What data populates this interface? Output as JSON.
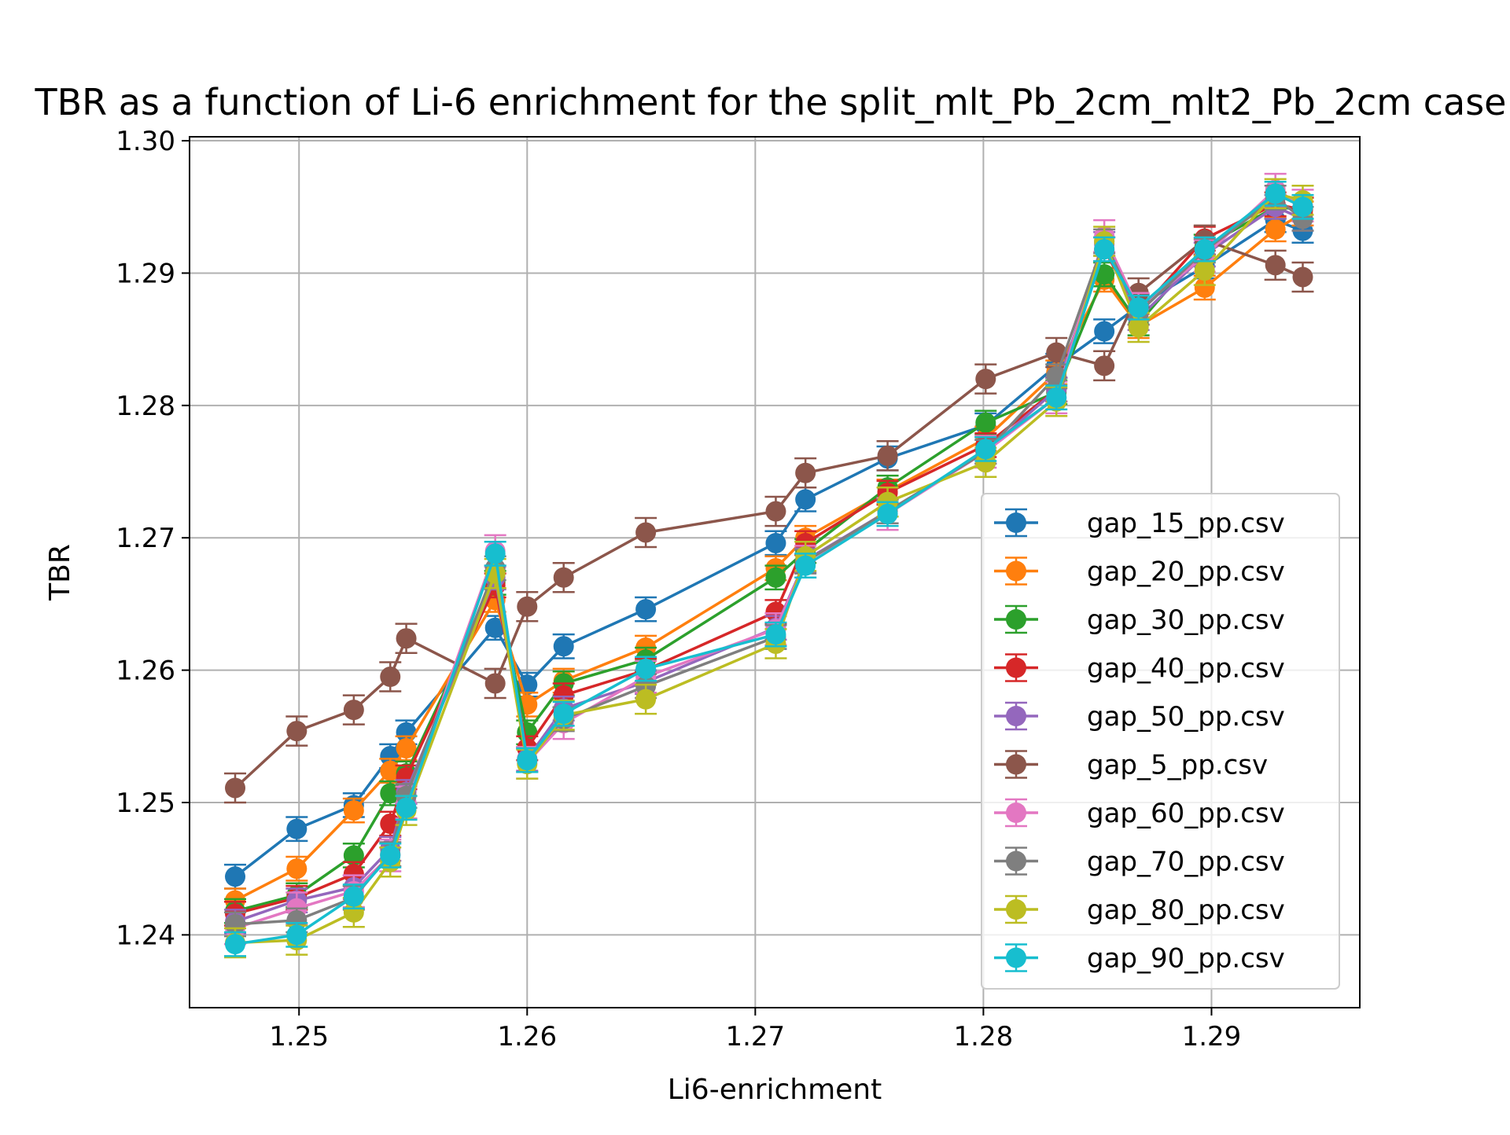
{
  "chart_data": {
    "type": "line",
    "title": "TBR as a function of Li-6 enrichment for the split_mlt_Pb_2cm_mlt2_Pb_2cm case",
    "xlabel": "Li6-enrichment",
    "ylabel": "TBR",
    "xlim": [
      1.2452,
      1.2965
    ],
    "ylim": [
      1.2345,
      1.3003
    ],
    "xticks": [
      "1.25",
      "1.26",
      "1.27",
      "1.28",
      "1.29"
    ],
    "xtick_values": [
      1.25,
      1.26,
      1.27,
      1.28,
      1.29
    ],
    "yticks": [
      "1.24",
      "1.25",
      "1.26",
      "1.27",
      "1.28",
      "1.29",
      "1.30"
    ],
    "ytick_values": [
      1.24,
      1.25,
      1.26,
      1.27,
      1.28,
      1.29,
      1.3
    ],
    "grid": true,
    "legend_position": "lower-right",
    "x": [
      1.2472,
      1.2499,
      1.2524,
      1.254,
      1.2547,
      1.2586,
      1.26,
      1.2616,
      1.2652,
      1.2709,
      1.2722,
      1.2758,
      1.2801,
      1.2832,
      1.2853,
      1.2868,
      1.2897,
      1.2928,
      1.294
    ],
    "series": [
      {
        "name": "gap_15_pp.csv",
        "color": "#1f77b4",
        "error": 0.0009,
        "values": [
          1.2444,
          1.248,
          1.2498,
          1.2535,
          1.2553,
          1.2632,
          1.2589,
          1.2618,
          1.2646,
          1.2696,
          1.2729,
          1.276,
          1.2785,
          1.283,
          1.2856,
          1.2875,
          1.2905,
          1.294,
          1.2932
        ]
      },
      {
        "name": "gap_20_pp.csv",
        "color": "#ff7f0e",
        "error": 0.0009,
        "values": [
          1.2426,
          1.245,
          1.2494,
          1.2524,
          1.2541,
          1.2653,
          1.2574,
          1.2592,
          1.2617,
          1.2677,
          1.27,
          1.2735,
          1.2775,
          1.2825,
          1.2895,
          1.286,
          1.2889,
          1.2933,
          1.2945
        ]
      },
      {
        "name": "gap_30_pp.csv",
        "color": "#2ca02c",
        "error": 0.0009,
        "values": [
          1.2418,
          1.243,
          1.246,
          1.2507,
          1.2522,
          1.2666,
          1.2553,
          1.259,
          1.2608,
          1.267,
          1.269,
          1.2738,
          1.2787,
          1.281,
          1.2899,
          1.2862,
          1.292,
          1.295,
          1.2948
        ]
      },
      {
        "name": "gap_40_pp.csv",
        "color": "#d62728",
        "error": 0.0009,
        "values": [
          1.2416,
          1.2428,
          1.2446,
          1.2484,
          1.2519,
          1.2664,
          1.2541,
          1.2581,
          1.26,
          1.2644,
          1.2696,
          1.2734,
          1.277,
          1.2812,
          1.2918,
          1.287,
          1.2926,
          1.2952,
          1.2948
        ]
      },
      {
        "name": "gap_50_pp.csv",
        "color": "#9467bd",
        "error": 0.0009,
        "values": [
          1.241,
          1.2426,
          1.2436,
          1.2465,
          1.2508,
          1.267,
          1.2533,
          1.2571,
          1.2591,
          1.2632,
          1.2683,
          1.272,
          1.2765,
          1.2812,
          1.2922,
          1.2866,
          1.2914,
          1.295,
          1.2941
        ]
      },
      {
        "name": "gap_5_pp.csv",
        "color": "#8c564b",
        "error": 0.0011,
        "values": [
          1.2511,
          1.2554,
          1.257,
          1.2595,
          1.2624,
          1.259,
          1.2648,
          1.267,
          1.2704,
          1.272,
          1.2749,
          1.2762,
          1.282,
          1.284,
          1.283,
          1.2885,
          1.2925,
          1.2906,
          1.2897
        ]
      },
      {
        "name": "gap_60_pp.csv",
        "color": "#e377c2",
        "error": 0.0012,
        "values": [
          1.2405,
          1.242,
          1.2433,
          1.246,
          1.25,
          1.269,
          1.253,
          1.256,
          1.2595,
          1.2631,
          1.2682,
          1.2718,
          1.2765,
          1.2806,
          1.2928,
          1.2873,
          1.2913,
          1.2963,
          1.2951
        ]
      },
      {
        "name": "gap_70_pp.csv",
        "color": "#7f7f7f",
        "error": 0.0009,
        "values": [
          1.2408,
          1.2411,
          1.2428,
          1.2461,
          1.2505,
          1.2677,
          1.2532,
          1.2563,
          1.2588,
          1.2625,
          1.2682,
          1.272,
          1.2765,
          1.2822,
          1.2924,
          1.287,
          1.2917,
          1.2957,
          1.2941
        ]
      },
      {
        "name": "gap_80_pp.csv",
        "color": "#bcbd22",
        "error": 0.0011,
        "values": [
          1.2394,
          1.2396,
          1.2417,
          1.2455,
          1.2494,
          1.2673,
          1.2529,
          1.2566,
          1.2578,
          1.262,
          1.2686,
          1.2727,
          1.2757,
          1.2803,
          1.2924,
          1.2859,
          1.2902,
          1.296,
          1.2955
        ]
      },
      {
        "name": "gap_90_pp.csv",
        "color": "#17becf",
        "error": 0.0009,
        "values": [
          1.2393,
          1.24,
          1.2429,
          1.246,
          1.2496,
          1.2688,
          1.2532,
          1.2567,
          1.2601,
          1.2627,
          1.2679,
          1.2718,
          1.2767,
          1.2806,
          1.2918,
          1.2874,
          1.2918,
          1.296,
          1.295
        ]
      }
    ]
  }
}
